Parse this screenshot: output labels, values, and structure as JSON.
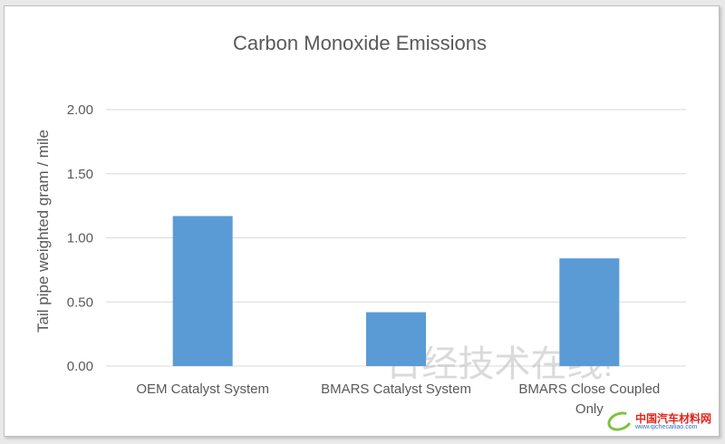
{
  "chart_data": {
    "type": "bar",
    "title": "Carbon Monoxide Emissions",
    "ylabel": "Tail pipe weighted gram / mile",
    "xlabel": "",
    "categories": [
      "OEM Catalyst System",
      "BMARS Catalyst System",
      "BMARS Close Coupled Only"
    ],
    "category_lines": [
      [
        "OEM Catalyst System"
      ],
      [
        "BMARS Catalyst System"
      ],
      [
        "BMARS Close Coupled",
        "Only"
      ]
    ],
    "values": [
      1.17,
      0.42,
      0.84
    ],
    "ylim": [
      0,
      2.0
    ],
    "yticks": [
      "0.00",
      "0.50",
      "1.00",
      "1.50",
      "2.00"
    ],
    "ytick_values": [
      0,
      0.5,
      1.0,
      1.5,
      2.0
    ],
    "grid": true,
    "legend": "none",
    "bar_color": "#5b9bd5"
  },
  "watermark": "日经技术在线!",
  "logo": {
    "main": "中国汽车材料网",
    "sub": "www.qichecailiao.com",
    "accent": "#7dc242",
    "brand": "#e2231a"
  }
}
